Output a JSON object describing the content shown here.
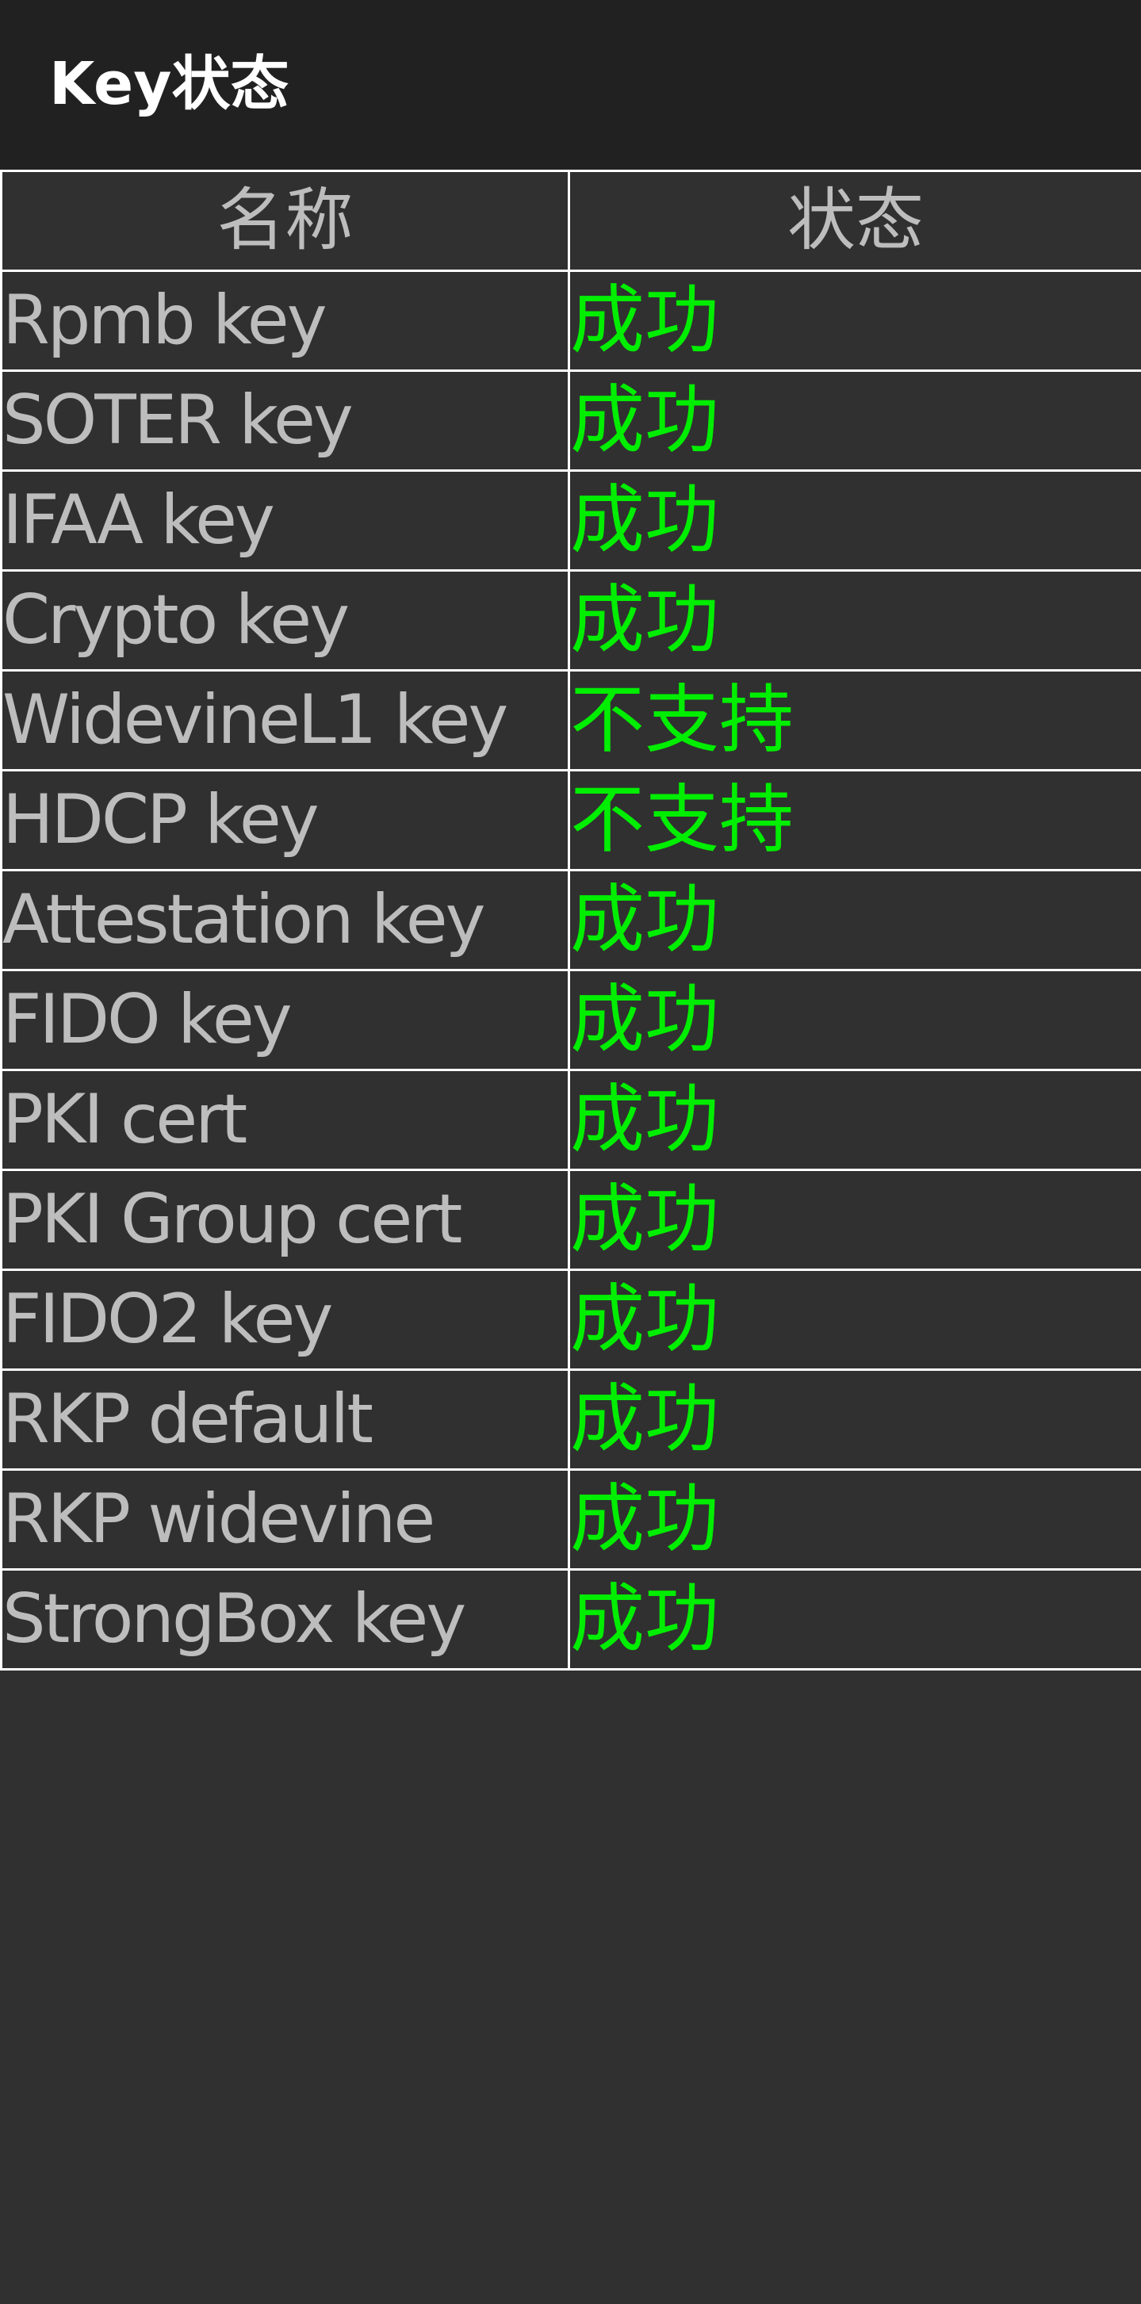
{
  "app_bar": {
    "title": "Key状态"
  },
  "table": {
    "headers": {
      "name": "名称",
      "status": "状态"
    },
    "rows": [
      {
        "name": "Rpmb key",
        "status": "成功"
      },
      {
        "name": "SOTER key",
        "status": "成功"
      },
      {
        "name": "IFAA key",
        "status": "成功"
      },
      {
        "name": "Crypto key",
        "status": "成功"
      },
      {
        "name": "WidevineL1 key",
        "status": "不支持"
      },
      {
        "name": "HDCP key",
        "status": "不支持"
      },
      {
        "name": "Attestation key",
        "status": "成功"
      },
      {
        "name": "FIDO key",
        "status": "成功"
      },
      {
        "name": "PKI cert",
        "status": "成功"
      },
      {
        "name": "PKI Group cert",
        "status": "成功"
      },
      {
        "name": "FIDO2 key",
        "status": "成功"
      },
      {
        "name": "RKP default",
        "status": "成功"
      },
      {
        "name": "RKP widevine",
        "status": "成功"
      },
      {
        "name": "StrongBox key",
        "status": "成功"
      }
    ]
  },
  "colors": {
    "app_bar_bg": "#212121",
    "page_bg": "#303030",
    "text_gray": "#bdbdbd",
    "status_green": "#00ee00",
    "grid_line": "#ffffff"
  }
}
